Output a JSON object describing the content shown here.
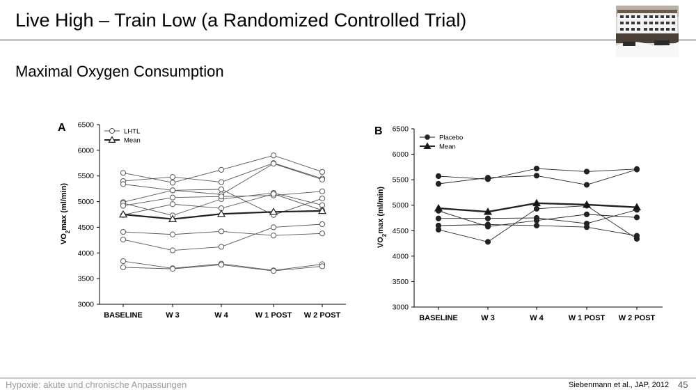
{
  "slide": {
    "title": "Live High – Train Low (a Randomized Controlled Trial)",
    "subtitle": "Maximal Oxygen Consumption",
    "footer_left": "Hypoxie: akute und chronische Anpassungen",
    "footer_right": "Siebenmann et al., JAP, 2012",
    "page_number": "45"
  },
  "chart_data": [
    {
      "type": "line",
      "panel_label": "A",
      "categories": [
        "BASELINE",
        "W 3",
        "W 4",
        "W 1 POST",
        "W 2 POST"
      ],
      "ylabel_parts": [
        "VO",
        "2",
        "max (ml/min)"
      ],
      "ylim": [
        3000,
        6500
      ],
      "yticks": [
        3000,
        3500,
        4000,
        4500,
        5000,
        5500,
        6000,
        6500
      ],
      "legend": {
        "placement": "top-left",
        "entries": [
          "LHTL",
          "Mean"
        ]
      },
      "marker_individual": "open-circle",
      "marker_mean": "open-triangle",
      "series": [
        {
          "values": [
            5560,
            5370,
            5620,
            5900,
            5580
          ]
        },
        {
          "values": [
            5400,
            5480,
            5380,
            5750,
            5450
          ]
        },
        {
          "values": [
            5340,
            5220,
            5140,
            5740,
            5430
          ]
        },
        {
          "values": [
            4990,
            5220,
            5240,
            4740,
            5060
          ]
        },
        {
          "values": [
            4970,
            4730,
            5050,
            5170,
            4930
          ]
        },
        {
          "values": [
            4920,
            5080,
            5100,
            5120,
            5200
          ]
        },
        {
          "values": [
            4740,
            4950,
            4870,
            5150,
            4830
          ]
        },
        {
          "values": [
            4410,
            4360,
            4420,
            4340,
            4380
          ]
        },
        {
          "values": [
            4260,
            4050,
            4120,
            4500,
            4560
          ]
        },
        {
          "values": [
            3840,
            3700,
            3790,
            3660,
            3780
          ]
        },
        {
          "values": [
            3720,
            3690,
            3770,
            3650,
            3740
          ]
        },
        {
          "name": "Mean",
          "values": [
            4750,
            4660,
            4760,
            4800,
            4820
          ]
        }
      ]
    },
    {
      "type": "line",
      "panel_label": "B",
      "categories": [
        "BASELINE",
        "W 3",
        "W 4",
        "W 1 POST",
        "W 2 POST"
      ],
      "ylabel_parts": [
        "VO",
        "2",
        "max (ml/min)"
      ],
      "ylim": [
        3000,
        6500
      ],
      "yticks": [
        3000,
        3500,
        4000,
        4500,
        5000,
        5500,
        6000,
        6500
      ],
      "legend": {
        "placement": "top-left",
        "entries": [
          "Placebo",
          "Mean"
        ]
      },
      "marker_individual": "filled-circle",
      "marker_mean": "filled-triangle",
      "series": [
        {
          "values": [
            5570,
            5510,
            5720,
            5660,
            5710
          ]
        },
        {
          "values": [
            5420,
            5540,
            5580,
            5400,
            5700
          ]
        },
        {
          "values": [
            4890,
            4580,
            4700,
            4820,
            4760
          ]
        },
        {
          "values": [
            4740,
            4740,
            4750,
            4640,
            4910
          ]
        },
        {
          "values": [
            4600,
            4620,
            4600,
            4570,
            4400
          ]
        },
        {
          "values": [
            4520,
            4280,
            4930,
            4990,
            4340
          ]
        },
        {
          "name": "Mean",
          "values": [
            4940,
            4870,
            5040,
            5010,
            4960
          ]
        }
      ]
    }
  ],
  "photo": {
    "description_colors": [
      "#5a4a3a",
      "#e8e8e8",
      "#3a3a3a"
    ]
  }
}
